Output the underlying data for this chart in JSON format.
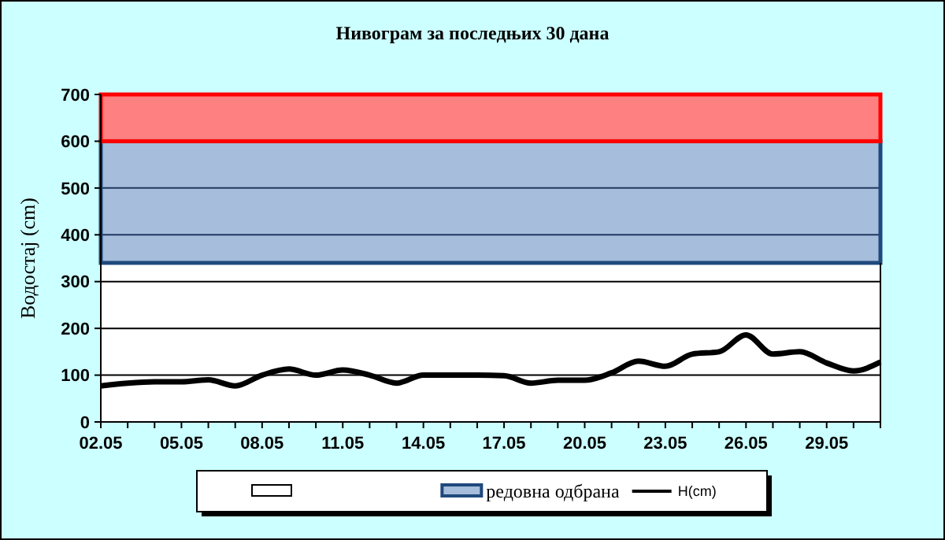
{
  "chart_data": {
    "type": "line",
    "title": "Нивограм за последњих 30 дана",
    "ylabel": "Водостај (cm)",
    "categories": [
      "02.05",
      null,
      null,
      "05.05",
      null,
      null,
      "08.05",
      null,
      null,
      "11.05",
      null,
      null,
      "14.05",
      null,
      null,
      "17.05",
      null,
      null,
      "20.05",
      null,
      null,
      "23.05",
      null,
      null,
      "26.05",
      null,
      null,
      "29.05",
      null,
      null
    ],
    "series": [
      {
        "name": "H(cm)",
        "color": "#000000",
        "values": [
          77,
          83,
          86,
          86,
          90,
          77,
          100,
          113,
          100,
          111,
          100,
          83,
          100,
          100,
          100,
          99,
          83,
          89,
          89,
          105,
          130,
          119,
          145,
          150,
          186,
          145,
          150,
          126,
          109,
          128
        ]
      }
    ],
    "ylim": [
      0,
      700
    ],
    "yticks": [
      0,
      100,
      200,
      300,
      400,
      500,
      600,
      700
    ],
    "grid": "y",
    "legend": "bottom",
    "bands": [
      {
        "axis": "y",
        "from": 0,
        "to": 340,
        "color": "#ffffff"
      },
      {
        "axis": "y",
        "from": 340,
        "to": 600,
        "label": "редовна одбрана",
        "color": "#a6bddb"
      },
      {
        "axis": "y",
        "from": 600,
        "to": 700,
        "color": "#ff8080"
      }
    ]
  }
}
